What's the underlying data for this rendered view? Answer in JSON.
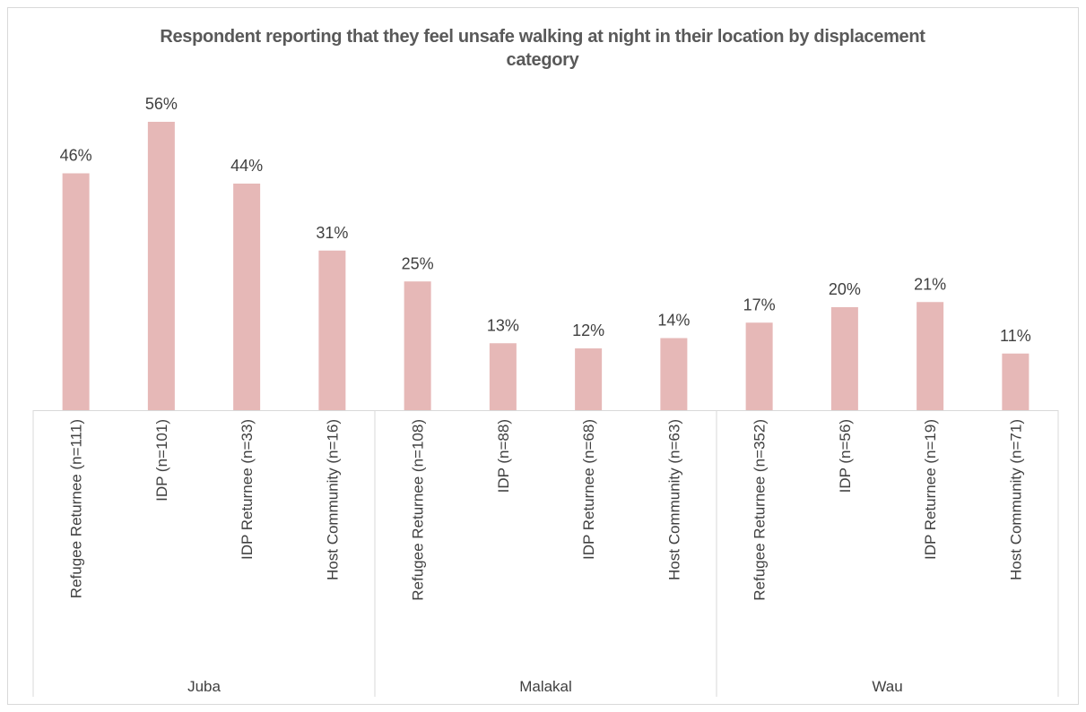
{
  "chart_data": {
    "type": "bar",
    "title": "Respondent reporting that they feel unsafe walking at night in their location by displacement category",
    "categories": [
      "Refugee Returnee (n=111)",
      "IDP (n=101)",
      "IDP Returnee (n=33)",
      "Host Community (n=16)",
      "Refugee Returnee (n=108)",
      "IDP (n=88)",
      "IDP Returnee (n=68)",
      "Host Community (n=63)",
      "Refugee Returnee (n=352)",
      "IDP (n=56)",
      "IDP Returnee (n=19)",
      "Host Community (n=71)"
    ],
    "groups": [
      "Juba",
      "Malakal",
      "Wau"
    ],
    "values": [
      46,
      56,
      44,
      31,
      25,
      13,
      12,
      14,
      17,
      20,
      21,
      11
    ],
    "value_labels": [
      "46%",
      "56%",
      "44%",
      "31%",
      "25%",
      "13%",
      "12%",
      "14%",
      "17%",
      "20%",
      "21%",
      "11%"
    ],
    "color": "#e6b8b7",
    "ylim": [
      0,
      60
    ]
  }
}
